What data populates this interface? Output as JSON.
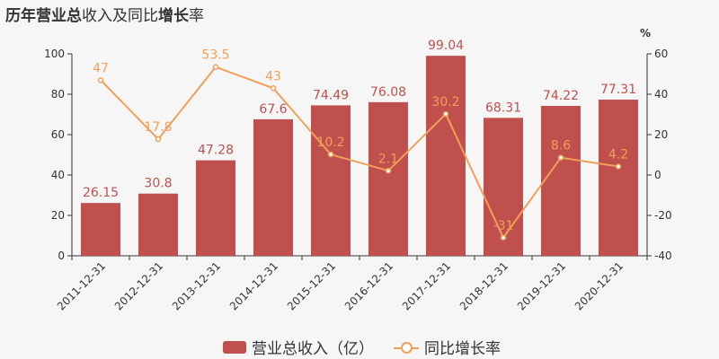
{
  "title_parts": [
    {
      "text": "历年",
      "bold": true
    },
    {
      "text": "营业总",
      "bold": true
    },
    {
      "text": "收入及同比",
      "bold": false
    },
    {
      "text": "增长",
      "bold": true
    },
    {
      "text": "率",
      "bold": false
    }
  ],
  "colors": {
    "bar": "#c0504d",
    "bar_label": "#c0504d",
    "line": "#f0a05a",
    "line_label": "#f0a05a",
    "axis": "#333333",
    "grid": "#e6e6e6"
  },
  "chart_data": {
    "type": "bar",
    "categories": [
      "2011-12-31",
      "2012-12-31",
      "2013-12-31",
      "2014-12-31",
      "2015-12-31",
      "2016-12-31",
      "2017-12-31",
      "2018-12-31",
      "2019-12-31",
      "2020-12-31"
    ],
    "series": [
      {
        "name": "营业总收入（亿）",
        "type": "bar",
        "axis": "left",
        "values": [
          26.15,
          30.8,
          47.28,
          67.6,
          74.49,
          76.08,
          99.04,
          68.31,
          74.22,
          77.31
        ],
        "labels": [
          "26.15",
          "30.8",
          "47.28",
          "67.6",
          "74.49",
          "76.08",
          "99.04",
          "68.31",
          "74.22",
          "77.31"
        ]
      },
      {
        "name": "同比增长率",
        "type": "line",
        "axis": "right",
        "values": [
          47,
          17.8,
          53.5,
          43,
          10.2,
          2.1,
          30.2,
          -31,
          8.6,
          4.2
        ],
        "labels": [
          "47",
          "17.8",
          "53.5",
          "43",
          "10.2",
          "2.1",
          "30.2",
          "-31",
          "8.6",
          "4.2"
        ]
      }
    ],
    "y_left": {
      "min": 0,
      "max": 100,
      "ticks": [
        0,
        20,
        40,
        60,
        80,
        100
      ]
    },
    "y_right": {
      "min": -40,
      "max": 60,
      "ticks": [
        -40,
        -20,
        0,
        20,
        40,
        60
      ],
      "unit": "%"
    },
    "legend_position": "bottom-center",
    "grid": false
  },
  "legend": {
    "bar_label": "营业总收入（亿）",
    "line_label": "同比增长率"
  }
}
